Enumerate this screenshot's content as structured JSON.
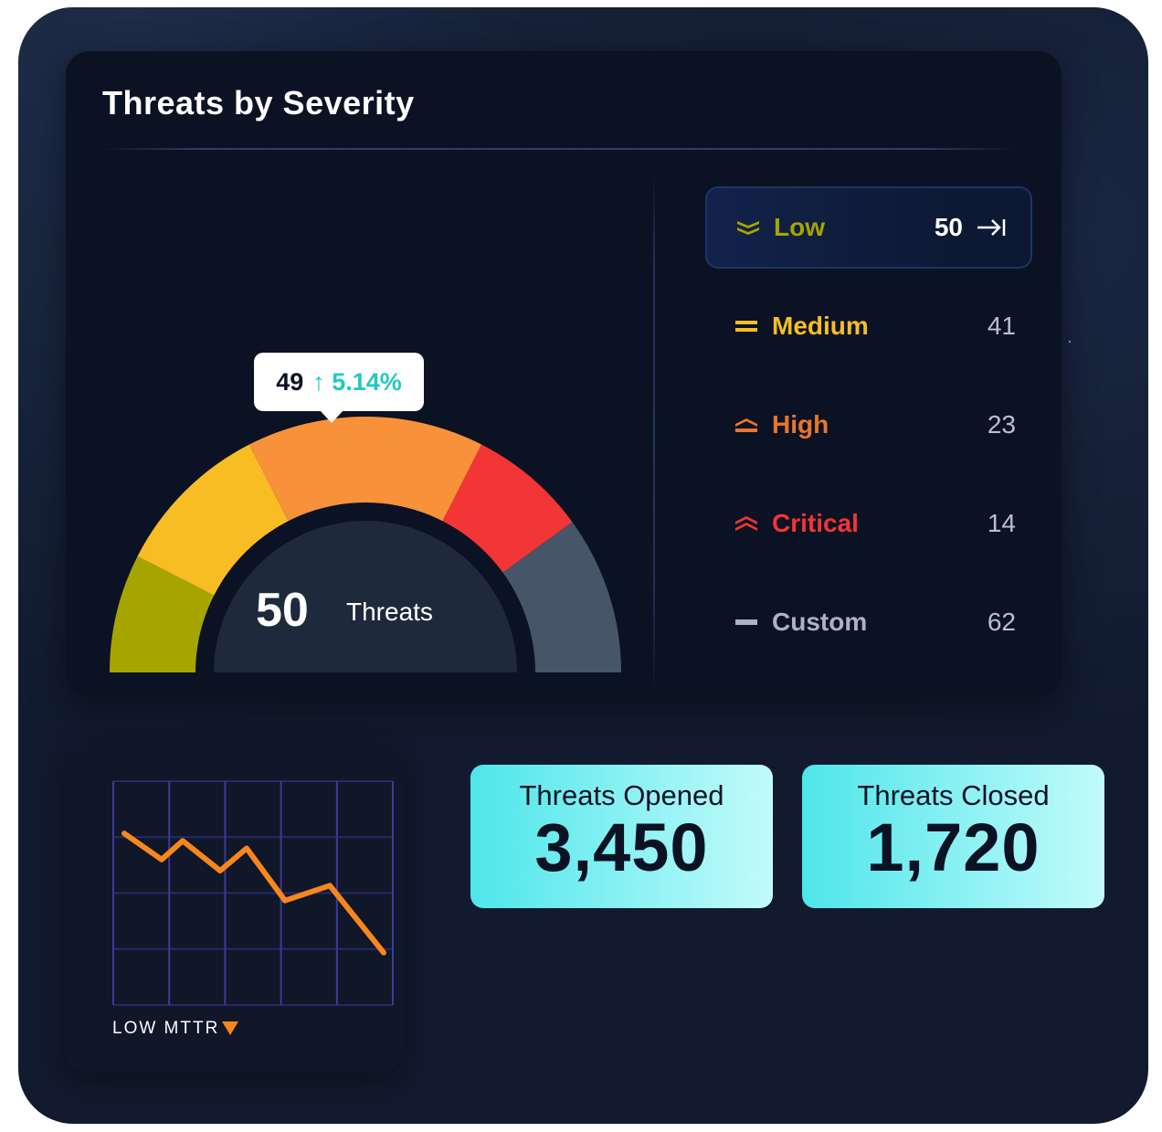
{
  "main": {
    "title": "Threats by Severity",
    "gauge": {
      "tooltip_value": "49",
      "tooltip_change": "5.14%",
      "tooltip_arrow": "↑",
      "center_value": "50",
      "center_label": "Threats",
      "segments": [
        {
          "name": "Low",
          "share": 0.15,
          "color": "#a6a500"
        },
        {
          "name": "Medium",
          "share": 0.2,
          "color": "#f9bd24"
        },
        {
          "name": "High",
          "share": 0.3,
          "color": "#f7923b"
        },
        {
          "name": "Critical",
          "share": 0.15,
          "color": "#f23535"
        },
        {
          "name": "Custom",
          "share": 0.2,
          "color": "#475569"
        }
      ]
    },
    "legend": [
      {
        "label": "Low",
        "count": "50",
        "color": "#a6a500",
        "icon": "chevron-double-down-icon",
        "active": true
      },
      {
        "label": "Medium",
        "count": "41",
        "color": "#f9bd24",
        "icon": "equals-icon",
        "active": false
      },
      {
        "label": "High",
        "count": "23",
        "color": "#e9762b",
        "icon": "chevron-up-icon",
        "active": false
      },
      {
        "label": "Critical",
        "count": "14",
        "color": "#f23535",
        "icon": "chevron-double-up-icon",
        "active": false
      },
      {
        "label": "Custom",
        "count": "62",
        "color": "#a9b3c4",
        "icon": "dash-icon",
        "active": false
      }
    ]
  },
  "mttr": {
    "label": "LOW MTTR",
    "line_color": "#f7861c",
    "values": [
      8.6,
      7.9,
      8.4,
      7.6,
      8.2,
      6.8,
      7.2,
      5.4
    ]
  },
  "stats": {
    "opened": {
      "label": "Threats Opened",
      "value": "3,450"
    },
    "closed": {
      "label": "Threats Closed",
      "value": "1,720"
    }
  }
}
